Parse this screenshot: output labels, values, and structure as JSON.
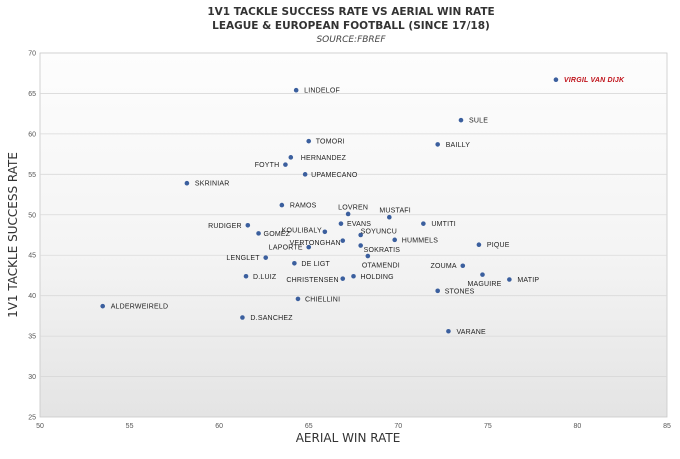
{
  "chart_data": {
    "type": "scatter",
    "title": "1V1 TACKLE SUCCESS RATE VS AERIAL WIN RATE",
    "subtitle": "LEAGUE & EUROPEAN FOOTBALL (SINCE 17/18)",
    "source": "SOURCE:FBREF",
    "xlabel": "AERIAL WIN RATE",
    "ylabel": "1V1 TACKLE SUCCESS RATE",
    "xlim": [
      50,
      85
    ],
    "ylim": [
      25,
      70
    ],
    "xticks": [
      50,
      55,
      60,
      65,
      70,
      75,
      80,
      85
    ],
    "yticks": [
      25,
      30,
      35,
      40,
      45,
      50,
      55,
      60,
      65,
      70
    ],
    "grid": "horizontal",
    "highlight_color": "#c0141c",
    "point_color": "#3b5f9e",
    "points": [
      {
        "label": "VIRGIL VAN DIJK",
        "x": 78.8,
        "y": 66.7,
        "highlight": true
      },
      {
        "label": "LINDELOF",
        "x": 64.3,
        "y": 65.4
      },
      {
        "label": "SULE",
        "x": 73.5,
        "y": 61.7
      },
      {
        "label": "TOMORI",
        "x": 65.0,
        "y": 59.1
      },
      {
        "label": "BAILLY",
        "x": 72.2,
        "y": 58.7
      },
      {
        "label": "HERNANDEZ",
        "x": 64.0,
        "y": 57.1
      },
      {
        "label": "FOYTH",
        "x": 63.7,
        "y": 56.2
      },
      {
        "label": "UPAMECANO",
        "x": 64.8,
        "y": 55.0
      },
      {
        "label": "SKRINIAR",
        "x": 58.2,
        "y": 53.9
      },
      {
        "label": "RAMOS",
        "x": 63.5,
        "y": 51.2
      },
      {
        "label": "LOVREN",
        "x": 67.2,
        "y": 50.1
      },
      {
        "label": "MUSTAFI",
        "x": 69.5,
        "y": 49.7
      },
      {
        "label": "RUDIGER",
        "x": 61.6,
        "y": 48.7
      },
      {
        "label": "KOULIBALY",
        "x": 65.9,
        "y": 47.9
      },
      {
        "label": "EVANS",
        "x": 66.8,
        "y": 48.9
      },
      {
        "label": "UMTITI",
        "x": 71.4,
        "y": 48.9
      },
      {
        "label": "GOMEZ",
        "x": 62.2,
        "y": 47.7
      },
      {
        "label": "SOYUNCU",
        "x": 67.9,
        "y": 47.5
      },
      {
        "label": "VERTONGHAN",
        "x": 66.9,
        "y": 46.8
      },
      {
        "label": "HUMMELS",
        "x": 69.8,
        "y": 46.9
      },
      {
        "label": "LAPORTE",
        "x": 65.0,
        "y": 46.0
      },
      {
        "label": "SOKRATIS",
        "x": 67.9,
        "y": 46.2
      },
      {
        "label": "PIQUE",
        "x": 74.5,
        "y": 46.3
      },
      {
        "label": "LENGLET",
        "x": 62.6,
        "y": 44.7
      },
      {
        "label": "OTAMENDI",
        "x": 68.3,
        "y": 44.9
      },
      {
        "label": "DE LIGT",
        "x": 64.2,
        "y": 44.0
      },
      {
        "label": "ZOUMA",
        "x": 73.6,
        "y": 43.7
      },
      {
        "label": "D.LUIZ",
        "x": 61.5,
        "y": 42.4
      },
      {
        "label": "CHRISTENSEN",
        "x": 66.9,
        "y": 42.1
      },
      {
        "label": "HOLDING",
        "x": 67.5,
        "y": 42.4
      },
      {
        "label": "MAGUIRE",
        "x": 74.7,
        "y": 42.6
      },
      {
        "label": "MATIP",
        "x": 76.2,
        "y": 42.0
      },
      {
        "label": "STONES",
        "x": 72.2,
        "y": 40.6
      },
      {
        "label": "CHIELLINI",
        "x": 64.4,
        "y": 39.6
      },
      {
        "label": "ALDERWEIRELD",
        "x": 53.5,
        "y": 38.7
      },
      {
        "label": "D.SANCHEZ",
        "x": 61.3,
        "y": 37.3
      },
      {
        "label": "VARANE",
        "x": 72.8,
        "y": 35.6
      }
    ]
  }
}
